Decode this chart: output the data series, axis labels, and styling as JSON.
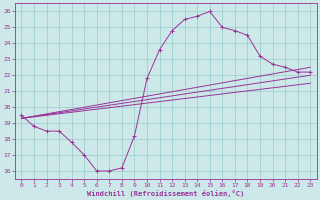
{
  "xlabel": "Windchill (Refroidissement éolien,°C)",
  "bg_color": "#cce8e8",
  "line_color": "#993399",
  "grid_color": "#99cccc",
  "xlim": [
    -0.5,
    23.5
  ],
  "ylim": [
    15.5,
    26.5
  ],
  "yticks": [
    16,
    17,
    18,
    19,
    20,
    21,
    22,
    23,
    24,
    25,
    26
  ],
  "xticks": [
    0,
    1,
    2,
    3,
    4,
    5,
    6,
    7,
    8,
    9,
    10,
    11,
    12,
    13,
    14,
    15,
    16,
    17,
    18,
    19,
    20,
    21,
    22,
    23
  ],
  "series_main": {
    "x": [
      0,
      1,
      2,
      3,
      4,
      5,
      6,
      7,
      8,
      9,
      10,
      11,
      12,
      13,
      14,
      15,
      16,
      17,
      18,
      19,
      20,
      21,
      22,
      23
    ],
    "y": [
      19.5,
      18.8,
      18.5,
      18.5,
      17.8,
      17.0,
      16.0,
      16.0,
      16.2,
      18.2,
      21.8,
      23.6,
      24.8,
      25.5,
      25.7,
      26.0,
      25.0,
      24.8,
      24.5,
      23.2,
      22.7,
      22.5,
      22.2,
      22.2
    ]
  },
  "series_line1": {
    "x": [
      0,
      23
    ],
    "y": [
      19.3,
      22.0
    ]
  },
  "series_line2": {
    "x": [
      0,
      23
    ],
    "y": [
      19.3,
      21.5
    ]
  },
  "series_line3": {
    "x": [
      0,
      23
    ],
    "y": [
      19.3,
      22.5
    ]
  }
}
